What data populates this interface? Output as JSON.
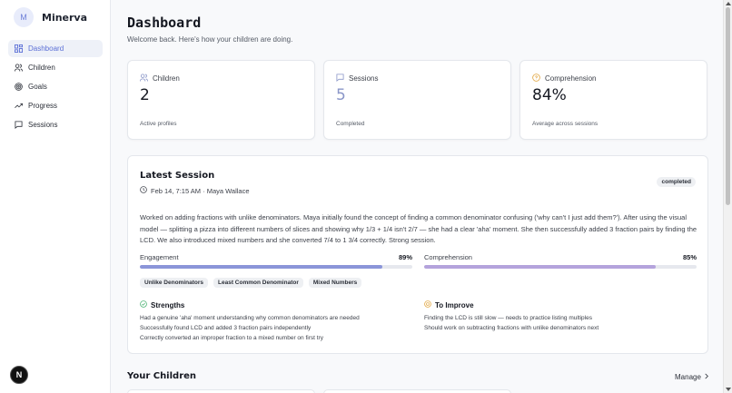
{
  "brand": {
    "avatar_letter": "M",
    "name": "Minerva"
  },
  "nav": [
    {
      "label": "Dashboard",
      "icon": "dashboard-icon",
      "active": true
    },
    {
      "label": "Children",
      "icon": "users-icon",
      "active": false
    },
    {
      "label": "Goals",
      "icon": "target-icon",
      "active": false
    },
    {
      "label": "Progress",
      "icon": "trend-icon",
      "active": false
    },
    {
      "label": "Sessions",
      "icon": "chat-icon",
      "active": false
    }
  ],
  "next_badge": "N",
  "header": {
    "title": "Dashboard",
    "subtitle": "Welcome back. Here's how your children are doing."
  },
  "stats": [
    {
      "label": "Children",
      "value": "2",
      "footnote": "Active profiles",
      "icon": "users-icon"
    },
    {
      "label": "Sessions",
      "value": "5",
      "footnote": "Completed",
      "icon": "chat-icon"
    },
    {
      "label": "Comprehension",
      "value": "84%",
      "footnote": "Average across sessions",
      "icon": "lightbulb-icon"
    }
  ],
  "latest_session": {
    "title": "Latest Session",
    "meta": "Feb 14, 7:15 AM · Maya Wallace",
    "status": "completed",
    "description": "Worked on adding fractions with unlike denominators. Maya initially found the concept of finding a common denominator confusing ('why can't I just add them?'). After using the visual model — splitting a pizza into different numbers of slices and showing why 1/3 + 1/4 isn't 2/7 — she had a clear 'aha' moment. She then successfully added 3 fraction pairs by finding the LCD. We also introduced mixed numbers and she converted 7/4 to 1 3/4 correctly. Strong session.",
    "engagement": {
      "label": "Engagement",
      "value_text": "89%",
      "value": 0.89,
      "color": "#8b95d9"
    },
    "comprehension": {
      "label": "Comprehension",
      "value_text": "85%",
      "value": 0.85,
      "color": "#b4a3dc"
    },
    "tags": [
      "Unlike Denominators",
      "Least Common Denominator",
      "Mixed Numbers"
    ],
    "strengths": {
      "title": "Strengths",
      "items": [
        "Had a genuine 'aha' moment understanding why common denominators are needed",
        "Successfully found LCD and added 3 fraction pairs independently",
        "Correctly converted an improper fraction to a mixed number on first try"
      ]
    },
    "improve": {
      "title": "To Improve",
      "items": [
        "Finding the LCD is still slow — needs to practice listing multiples",
        "Should work on subtracting fractions with unlike denominators next"
      ]
    }
  },
  "children_section": {
    "title": "Your Children",
    "manage_label": "Manage"
  }
}
